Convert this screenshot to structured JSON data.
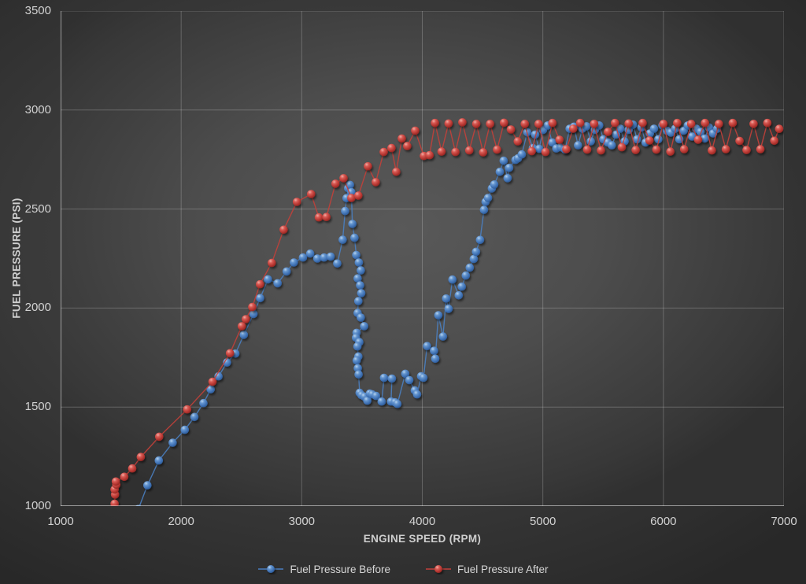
{
  "axes": {
    "x_title": "ENGINE SPEED (RPM)",
    "y_title": "FUEL PRESSURE (PSI)"
  },
  "colors": {
    "before_line": "#4a7fc1",
    "after_line": "#c2403a",
    "grid": "rgba(255,255,255,0.22)",
    "axis": "rgba(255,255,255,0.45)",
    "tick_text": "#d2d2d2"
  },
  "chart_data": {
    "type": "line",
    "title": "",
    "xlabel": "ENGINE SPEED (RPM)",
    "ylabel": "FUEL PRESSURE (PSI)",
    "xlim": [
      1000,
      7000
    ],
    "ylim": [
      1000,
      3500
    ],
    "x_ticks": [
      1000,
      2000,
      3000,
      4000,
      5000,
      6000,
      7000
    ],
    "y_ticks": [
      1000,
      1500,
      2000,
      2500,
      3000,
      3500
    ],
    "grid": true,
    "legend_position": "bottom",
    "series": [
      {
        "name": "Fuel Pressure Before",
        "color": "#4a7fc1",
        "points": [
          [
            1645,
            985
          ],
          [
            1720,
            1105
          ],
          [
            1815,
            1230
          ],
          [
            1930,
            1320
          ],
          [
            2030,
            1385
          ],
          [
            2110,
            1450
          ],
          [
            2185,
            1520
          ],
          [
            2245,
            1590
          ],
          [
            2310,
            1655
          ],
          [
            2380,
            1725
          ],
          [
            2450,
            1770
          ],
          [
            2520,
            1865
          ],
          [
            2600,
            1970
          ],
          [
            2655,
            2050
          ],
          [
            2720,
            2145
          ],
          [
            2800,
            2125
          ],
          [
            2875,
            2185
          ],
          [
            2935,
            2230
          ],
          [
            3010,
            2255
          ],
          [
            3070,
            2275
          ],
          [
            3130,
            2250
          ],
          [
            3185,
            2255
          ],
          [
            3240,
            2260
          ],
          [
            3295,
            2225
          ],
          [
            3340,
            2345
          ],
          [
            3360,
            2490
          ],
          [
            3372,
            2555
          ],
          [
            3385,
            2605
          ],
          [
            3400,
            2622
          ],
          [
            3412,
            2585
          ],
          [
            3420,
            2425
          ],
          [
            3438,
            2355
          ],
          [
            3452,
            2268
          ],
          [
            3474,
            2230
          ],
          [
            3490,
            2190
          ],
          [
            3464,
            2150
          ],
          [
            3484,
            2115
          ],
          [
            3494,
            2075
          ],
          [
            3470,
            2035
          ],
          [
            3464,
            1975
          ],
          [
            3490,
            1952
          ],
          [
            3518,
            1908
          ],
          [
            3455,
            1875
          ],
          [
            3450,
            1850
          ],
          [
            3478,
            1828
          ],
          [
            3462,
            1806
          ],
          [
            3470,
            1755
          ],
          [
            3456,
            1735
          ],
          [
            3465,
            1696
          ],
          [
            3472,
            1665
          ],
          [
            3480,
            1572
          ],
          [
            3496,
            1560
          ],
          [
            3520,
            1552
          ],
          [
            3544,
            1532
          ],
          [
            3565,
            1568
          ],
          [
            3585,
            1564
          ],
          [
            3617,
            1556
          ],
          [
            3663,
            1528
          ],
          [
            3683,
            1648
          ],
          [
            3748,
            1644
          ],
          [
            3741,
            1528
          ],
          [
            3774,
            1524
          ],
          [
            3794,
            1516
          ],
          [
            3859,
            1668
          ],
          [
            3892,
            1636
          ],
          [
            3938,
            1584
          ],
          [
            3957,
            1564
          ],
          [
            3990,
            1656
          ],
          [
            4010,
            1648
          ],
          [
            4040,
            1808
          ],
          [
            4098,
            1784
          ],
          [
            4108,
            1744
          ],
          [
            4133,
            1964
          ],
          [
            4172,
            1856
          ],
          [
            4198,
            2048
          ],
          [
            4218,
            1996
          ],
          [
            4250,
            2144
          ],
          [
            4302,
            2064
          ],
          [
            4328,
            2108
          ],
          [
            4361,
            2164
          ],
          [
            4394,
            2204
          ],
          [
            4427,
            2248
          ],
          [
            4446,
            2284
          ],
          [
            4479,
            2344
          ],
          [
            4512,
            2496
          ],
          [
            4525,
            2536
          ],
          [
            4545,
            2556
          ],
          [
            4577,
            2604
          ],
          [
            4597,
            2624
          ],
          [
            4643,
            2688
          ],
          [
            4675,
            2744
          ],
          [
            4708,
            2656
          ],
          [
            4721,
            2708
          ],
          [
            4773,
            2748
          ],
          [
            4793,
            2756
          ],
          [
            4825,
            2776
          ],
          [
            4871,
            2888
          ],
          [
            4917,
            2808
          ],
          [
            4936,
            2876
          ],
          [
            4969,
            2804
          ],
          [
            5002,
            2900
          ],
          [
            5040,
            2922
          ],
          [
            5078,
            2836
          ],
          [
            5112,
            2806
          ],
          [
            5150,
            2812
          ],
          [
            5185,
            2800
          ],
          [
            5222,
            2906
          ],
          [
            5258,
            2916
          ],
          [
            5292,
            2822
          ],
          [
            5328,
            2906
          ],
          [
            5362,
            2918
          ],
          [
            5398,
            2842
          ],
          [
            5432,
            2900
          ],
          [
            5468,
            2922
          ],
          [
            5502,
            2852
          ],
          [
            5538,
            2836
          ],
          [
            5572,
            2822
          ],
          [
            5608,
            2876
          ],
          [
            5642,
            2906
          ],
          [
            5678,
            2842
          ],
          [
            5712,
            2900
          ],
          [
            5748,
            2926
          ],
          [
            5782,
            2852
          ],
          [
            5818,
            2912
          ],
          [
            5852,
            2836
          ],
          [
            5888,
            2882
          ],
          [
            5922,
            2906
          ],
          [
            5958,
            2852
          ],
          [
            5992,
            2922
          ],
          [
            6028,
            2896
          ],
          [
            6062,
            2886
          ],
          [
            6098,
            2906
          ],
          [
            6132,
            2852
          ],
          [
            6168,
            2896
          ],
          [
            6202,
            2922
          ],
          [
            6238,
            2866
          ],
          [
            6272,
            2906
          ],
          [
            6308,
            2890
          ],
          [
            6342,
            2856
          ],
          [
            6378,
            2912
          ],
          [
            6412,
            2882
          ],
          [
            6445,
            2905
          ]
        ]
      },
      {
        "name": "Fuel Pressure After",
        "color": "#c2403a",
        "points": [
          [
            1448,
            1012
          ],
          [
            1452,
            1058
          ],
          [
            1448,
            1084
          ],
          [
            1462,
            1108
          ],
          [
            1458,
            1124
          ],
          [
            1528,
            1148
          ],
          [
            1594,
            1190
          ],
          [
            1665,
            1248
          ],
          [
            1818,
            1350
          ],
          [
            2050,
            1488
          ],
          [
            2260,
            1628
          ],
          [
            2405,
            1772
          ],
          [
            2503,
            1908
          ],
          [
            2536,
            1944
          ],
          [
            2590,
            2005
          ],
          [
            2654,
            2120
          ],
          [
            2752,
            2228
          ],
          [
            2850,
            2396
          ],
          [
            2960,
            2536
          ],
          [
            3078,
            2576
          ],
          [
            3142,
            2458
          ],
          [
            3205,
            2460
          ],
          [
            3280,
            2628
          ],
          [
            3347,
            2656
          ],
          [
            3412,
            2556
          ],
          [
            3470,
            2568
          ],
          [
            3549,
            2716
          ],
          [
            3614,
            2636
          ],
          [
            3680,
            2788
          ],
          [
            3745,
            2808
          ],
          [
            3784,
            2688
          ],
          [
            3830,
            2856
          ],
          [
            3875,
            2818
          ],
          [
            3941,
            2896
          ],
          [
            4013,
            2768
          ],
          [
            4060,
            2772
          ],
          [
            4105,
            2935
          ],
          [
            4160,
            2790
          ],
          [
            4218,
            2932
          ],
          [
            4275,
            2788
          ],
          [
            4332,
            2938
          ],
          [
            4390,
            2796
          ],
          [
            4448,
            2930
          ],
          [
            4505,
            2786
          ],
          [
            4562,
            2930
          ],
          [
            4620,
            2800
          ],
          [
            4678,
            2936
          ],
          [
            4735,
            2902
          ],
          [
            4792,
            2842
          ],
          [
            4850,
            2930
          ],
          [
            4908,
            2792
          ],
          [
            4965,
            2930
          ],
          [
            5022,
            2788
          ],
          [
            5080,
            2935
          ],
          [
            5138,
            2850
          ],
          [
            5195,
            2802
          ],
          [
            5252,
            2906
          ],
          [
            5310,
            2935
          ],
          [
            5368,
            2800
          ],
          [
            5425,
            2930
          ],
          [
            5482,
            2796
          ],
          [
            5540,
            2890
          ],
          [
            5598,
            2935
          ],
          [
            5655,
            2812
          ],
          [
            5712,
            2932
          ],
          [
            5770,
            2798
          ],
          [
            5828,
            2935
          ],
          [
            5885,
            2846
          ],
          [
            5942,
            2800
          ],
          [
            6000,
            2930
          ],
          [
            6058,
            2790
          ],
          [
            6115,
            2935
          ],
          [
            6172,
            2802
          ],
          [
            6230,
            2930
          ],
          [
            6288,
            2850
          ],
          [
            6345,
            2935
          ],
          [
            6402,
            2796
          ],
          [
            6460,
            2930
          ],
          [
            6518,
            2802
          ],
          [
            6575,
            2935
          ],
          [
            6632,
            2844
          ],
          [
            6690,
            2798
          ],
          [
            6748,
            2930
          ],
          [
            6805,
            2802
          ],
          [
            6862,
            2935
          ],
          [
            6920,
            2845
          ],
          [
            6960,
            2905
          ]
        ]
      }
    ]
  }
}
